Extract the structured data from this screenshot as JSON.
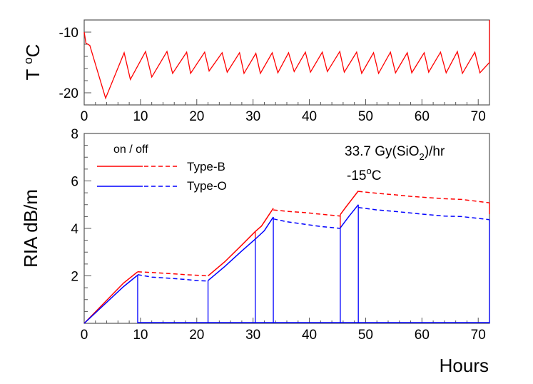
{
  "chart_data": [
    {
      "type": "line",
      "ylabel": {
        "main": "T ",
        "sup": "o",
        "rest": "C"
      },
      "xlim": [
        0,
        72
      ],
      "ylim": [
        -22,
        -8
      ],
      "x_ticks": [
        "0",
        "10",
        "20",
        "30",
        "40",
        "50",
        "60",
        "70"
      ],
      "y_ticks": [
        "-10",
        "-20"
      ],
      "y_tick_values": [
        -10,
        -20
      ],
      "color": "#ff0000",
      "series": [
        {
          "points": [
            [
              0,
              -10
            ],
            [
              0.3,
              -11.8
            ],
            [
              1.0,
              -12.2
            ],
            [
              3.8,
              -20.9
            ],
            [
              7.1,
              -13.4
            ],
            [
              8.2,
              -17.8
            ],
            [
              10.9,
              -13.2
            ],
            [
              12.0,
              -17.4
            ],
            [
              14.7,
              -13.2
            ],
            [
              15.7,
              -16.8
            ],
            [
              18.2,
              -13.3
            ],
            [
              18.9,
              -16.8
            ],
            [
              21.4,
              -13.3
            ],
            [
              22.2,
              -16.4
            ],
            [
              24.5,
              -13.4
            ],
            [
              25.4,
              -16.6
            ],
            [
              27.6,
              -13.4
            ],
            [
              28.4,
              -16.8
            ],
            [
              30.5,
              -13.5
            ],
            [
              31.3,
              -16.8
            ],
            [
              33.4,
              -13.4
            ],
            [
              34.4,
              -16.7
            ],
            [
              36.3,
              -13.4
            ],
            [
              37.3,
              -16.5
            ],
            [
              39.3,
              -13.3
            ],
            [
              40.2,
              -16.6
            ],
            [
              42.3,
              -13.3
            ],
            [
              43.2,
              -16.5
            ],
            [
              45.4,
              -13.2
            ],
            [
              46.2,
              -16.6
            ],
            [
              48.4,
              -13.3
            ],
            [
              49.3,
              -16.8
            ],
            [
              51.4,
              -13.4
            ],
            [
              52.3,
              -16.8
            ],
            [
              54.4,
              -13.3
            ],
            [
              55.3,
              -16.7
            ],
            [
              57.4,
              -13.4
            ],
            [
              58.2,
              -16.7
            ],
            [
              60.4,
              -13.4
            ],
            [
              61.2,
              -16.6
            ],
            [
              63.3,
              -13.3
            ],
            [
              64.3,
              -16.7
            ],
            [
              66.3,
              -13.2
            ],
            [
              67.2,
              -16.8
            ],
            [
              69.4,
              -13.3
            ],
            [
              70.3,
              -16.7
            ],
            [
              72,
              -15
            ],
            [
              72,
              -8
            ]
          ]
        }
      ]
    },
    {
      "type": "line",
      "xlabel": "Hours",
      "ylabel": "RIA dB/m",
      "xlim": [
        0,
        72
      ],
      "ylim": [
        0,
        8
      ],
      "x_ticks": [
        "0",
        "10",
        "20",
        "30",
        "40",
        "50",
        "60",
        "70"
      ],
      "y_ticks": [
        "2",
        "4",
        "6",
        "8"
      ],
      "legend": {
        "header": "on / off",
        "position": "top-left"
      },
      "annotation": {
        "line1": "33.7 Gy(SiO",
        "line1_sub": "2",
        "line1_end": ")/hr",
        "line2": "-15",
        "line2_sup": "o",
        "line2_end": "C"
      },
      "series": [
        {
          "name": "Type-B",
          "color": "#ff0000",
          "on_segments": [
            [
              [
                0,
                0
              ],
              [
                7,
                1.7
              ],
              [
                9.5,
                2.17
              ]
            ],
            [
              [
                22,
                2.0
              ],
              [
                25,
                2.6
              ],
              [
                28,
                3.3
              ],
              [
                30.4,
                3.87
              ],
              [
                31.5,
                4.1
              ],
              [
                33.6,
                4.85
              ]
            ],
            [
              [
                45.5,
                4.58
              ],
              [
                46.5,
                4.9
              ],
              [
                48.7,
                5.58
              ]
            ]
          ],
          "off_segments": [
            [
              [
                9.5,
                2.17
              ],
              [
                12,
                2.14
              ],
              [
                15,
                2.1
              ],
              [
                18,
                2.05
              ],
              [
                22,
                2.0
              ]
            ],
            [
              [
                33.6,
                4.78
              ],
              [
                36,
                4.72
              ],
              [
                39,
                4.67
              ],
              [
                42,
                4.6
              ],
              [
                45.5,
                4.52
              ]
            ],
            [
              [
                48.7,
                5.56
              ],
              [
                52,
                5.48
              ],
              [
                55,
                5.42
              ],
              [
                58,
                5.35
              ],
              [
                61,
                5.3
              ],
              [
                64,
                5.25
              ],
              [
                67,
                5.22
              ],
              [
                72,
                5.08
              ]
            ]
          ],
          "drops": [
            [
              30.4,
              3.87,
              3.55
            ],
            [
              45.5,
              4.58,
              4.02
            ],
            [
              72,
              5.08,
              4.6
            ]
          ]
        },
        {
          "name": "Type-O",
          "color": "#0000ff",
          "on_segments": [
            [
              [
                0,
                0
              ],
              [
                7,
                1.55
              ],
              [
                9.5,
                2.03
              ]
            ],
            [
              [
                22,
                1.8
              ],
              [
                25,
                2.4
              ],
              [
                28,
                3.05
              ],
              [
                30.4,
                3.55
              ],
              [
                32,
                3.9
              ],
              [
                33.6,
                4.48
              ]
            ],
            [
              [
                45.5,
                4.02
              ],
              [
                47,
                4.5
              ],
              [
                48.7,
                5.0
              ]
            ]
          ],
          "off_segments": [
            [
              [
                9.5,
                2.05
              ],
              [
                12,
                1.95
              ],
              [
                15,
                1.9
              ],
              [
                18,
                1.85
              ],
              [
                20,
                1.8
              ],
              [
                22,
                1.78
              ]
            ],
            [
              [
                33.6,
                4.4
              ],
              [
                36,
                4.28
              ],
              [
                39,
                4.18
              ],
              [
                42,
                4.08
              ],
              [
                45.5,
                4.0
              ]
            ],
            [
              [
                48.7,
                4.88
              ],
              [
                52,
                4.78
              ],
              [
                55,
                4.72
              ],
              [
                58,
                4.65
              ],
              [
                61,
                4.58
              ],
              [
                64,
                4.52
              ],
              [
                67,
                4.5
              ],
              [
                72,
                4.37
              ]
            ]
          ],
          "drops_to_zero": [
            9.5,
            22,
            30.4,
            33.6,
            45.5,
            48.7,
            72
          ]
        }
      ]
    }
  ]
}
